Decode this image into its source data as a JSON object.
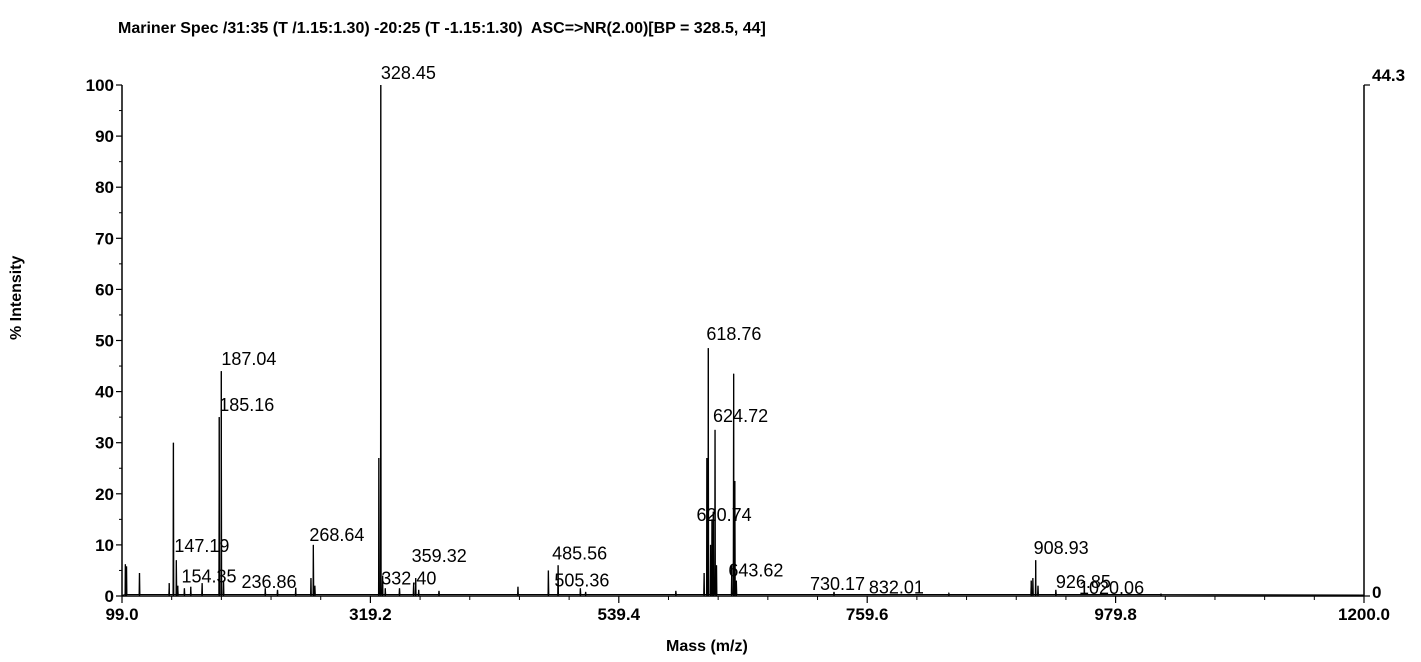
{
  "chart_data": {
    "type": "line",
    "title": "Mariner Spec /31:35 (T /1.15:1.30) -20:25 (T -1.15:1.30)  ASC=>NR(2.00)[BP = 328.5, 44]",
    "xlabel": "Mass (m/z)",
    "ylabel": "% Intensity",
    "xlim": [
      99.0,
      1200.0
    ],
    "ylim": [
      0,
      100
    ],
    "x_ticks": [
      "99.0",
      "319.2",
      "539.4",
      "759.6",
      "979.8",
      "1200.0"
    ],
    "y_ticks": [
      "0",
      "10",
      "20",
      "30",
      "40",
      "50",
      "60",
      "70",
      "80",
      "90",
      "100"
    ],
    "right_axis": {
      "top_label": "44.3",
      "bottom_label": "0"
    },
    "grid": false,
    "peaks": [
      {
        "x": 102.0,
        "y": 6.2
      },
      {
        "x": 103.0,
        "y": 5.8
      },
      {
        "x": 114.5,
        "y": 4.5
      },
      {
        "x": 140.8,
        "y": 2.5
      },
      {
        "x": 144.6,
        "y": 30.0
      },
      {
        "x": 147.19,
        "y": 7.0
      },
      {
        "x": 148.5,
        "y": 2.0
      },
      {
        "x": 154.35,
        "y": 1.5
      },
      {
        "x": 160.0,
        "y": 1.8
      },
      {
        "x": 170.0,
        "y": 2.5
      },
      {
        "x": 185.16,
        "y": 35.0
      },
      {
        "x": 187.04,
        "y": 44.0
      },
      {
        "x": 189.0,
        "y": 3.0
      },
      {
        "x": 226.0,
        "y": 1.5
      },
      {
        "x": 236.86,
        "y": 1.2
      },
      {
        "x": 253.0,
        "y": 1.6
      },
      {
        "x": 266.5,
        "y": 3.5
      },
      {
        "x": 268.64,
        "y": 10.0
      },
      {
        "x": 270.0,
        "y": 2.0
      },
      {
        "x": 326.7,
        "y": 27.0
      },
      {
        "x": 328.45,
        "y": 100.0
      },
      {
        "x": 330.0,
        "y": 4.0
      },
      {
        "x": 332.4,
        "y": 1.5
      },
      {
        "x": 345.0,
        "y": 1.5
      },
      {
        "x": 357.5,
        "y": 2.5
      },
      {
        "x": 359.32,
        "y": 3.5
      },
      {
        "x": 362.0,
        "y": 1.2
      },
      {
        "x": 380.0,
        "y": 1.0
      },
      {
        "x": 450.0,
        "y": 1.8
      },
      {
        "x": 477.0,
        "y": 5.0
      },
      {
        "x": 485.56,
        "y": 6.0
      },
      {
        "x": 505.36,
        "y": 1.5
      },
      {
        "x": 510.0,
        "y": 0.8
      },
      {
        "x": 590.0,
        "y": 1.0
      },
      {
        "x": 615.0,
        "y": 4.5
      },
      {
        "x": 617.5,
        "y": 27.0
      },
      {
        "x": 618.76,
        "y": 48.5
      },
      {
        "x": 620.74,
        "y": 10.0
      },
      {
        "x": 622.0,
        "y": 15.0
      },
      {
        "x": 623.2,
        "y": 16.5
      },
      {
        "x": 624.72,
        "y": 32.5
      },
      {
        "x": 626.0,
        "y": 6.0
      },
      {
        "x": 639.5,
        "y": 6.0
      },
      {
        "x": 641.2,
        "y": 43.5
      },
      {
        "x": 642.3,
        "y": 22.5
      },
      {
        "x": 643.62,
        "y": 3.0
      },
      {
        "x": 730.17,
        "y": 0.8
      },
      {
        "x": 832.01,
        "y": 0.5
      },
      {
        "x": 905.0,
        "y": 3.0
      },
      {
        "x": 906.5,
        "y": 3.5
      },
      {
        "x": 908.93,
        "y": 7.0
      },
      {
        "x": 911.0,
        "y": 2.0
      },
      {
        "x": 926.85,
        "y": 1.2
      },
      {
        "x": 1020.06,
        "y": 0.4
      }
    ],
    "annotations": [
      {
        "text": "328.45",
        "x": 328.45,
        "y": 100.0
      },
      {
        "text": "187.04",
        "x": 187.04,
        "y": 44.0
      },
      {
        "text": "185.16",
        "x": 185.16,
        "y": 35.0
      },
      {
        "text": "147.19",
        "x": 147.19,
        "y": 7.0
      },
      {
        "text": "154.35",
        "x": 154.35,
        "y": 1.5
      },
      {
        "text": "236.86",
        "x": 236.86,
        "y": 1.2
      },
      {
        "text": "268.64",
        "x": 268.64,
        "y": 10.0
      },
      {
        "text": "332.40",
        "x": 332.4,
        "y": 1.5
      },
      {
        "text": "359.32",
        "x": 359.32,
        "y": 3.5
      },
      {
        "text": "485.56",
        "x": 485.56,
        "y": 6.0
      },
      {
        "text": "505.36",
        "x": 505.36,
        "y": 1.5
      },
      {
        "text": "618.76",
        "x": 618.76,
        "y": 48.5
      },
      {
        "text": "624.72",
        "x": 624.72,
        "y": 32.5
      },
      {
        "text": "620.74",
        "x": 620.74,
        "y": 10.0
      },
      {
        "text": "643.62",
        "x": 643.62,
        "y": 3.0
      },
      {
        "text": "730.17",
        "x": 730.17,
        "y": 0.8
      },
      {
        "text": "832.01",
        "x": 832.01,
        "y": 0.5
      },
      {
        "text": "908.93",
        "x": 908.93,
        "y": 7.0
      },
      {
        "text": "926.85",
        "x": 926.85,
        "y": 1.2
      },
      {
        "text": "1020.06",
        "x": 1020.06,
        "y": 0.4
      }
    ]
  }
}
